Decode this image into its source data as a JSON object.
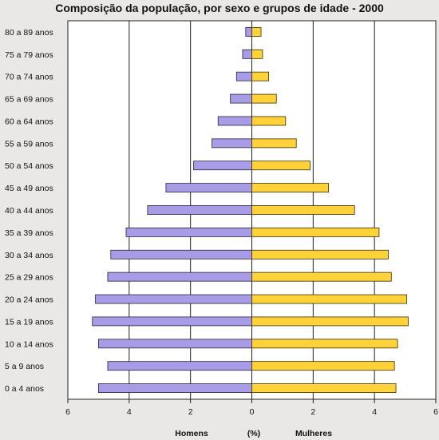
{
  "chart_data": {
    "type": "bar",
    "orientation": "horizontal",
    "title": "Composição da população, por sexo e grupos de idade - 2000",
    "categories": [
      "80 a 89 anos",
      "75 a 79 anos",
      "70 a 74 anos",
      "65 a 69 anos",
      "60 a 64 anos",
      "55 a 59 anos",
      "50 a 54 anos",
      "45 a 49 anos",
      "40 a 44 anos",
      "35 a 39 anos",
      "30 a 34 anos",
      "25 a 29 anos",
      "20 a 24 anos",
      "15 a 19 anos",
      "10 a 14 anos",
      "5 a 9 anos",
      "0 a 4 anos"
    ],
    "series": [
      {
        "name": "Homens",
        "color": "#a89ce6",
        "values": [
          0.2,
          0.3,
          0.5,
          0.7,
          1.1,
          1.3,
          1.9,
          2.8,
          3.4,
          4.1,
          4.6,
          4.7,
          5.1,
          5.2,
          5.0,
          4.7,
          5.0
        ]
      },
      {
        "name": "Mulheres",
        "color": "#ffd23a",
        "values": [
          0.3,
          0.35,
          0.55,
          0.8,
          1.1,
          1.45,
          1.9,
          2.5,
          3.35,
          4.15,
          4.45,
          4.55,
          5.05,
          5.1,
          4.75,
          4.65,
          4.7
        ]
      }
    ],
    "xlim": [
      -6,
      6
    ],
    "xticks": [
      6,
      4,
      2,
      0,
      2,
      4,
      6
    ],
    "xunit": "(%)",
    "grid": true
  }
}
